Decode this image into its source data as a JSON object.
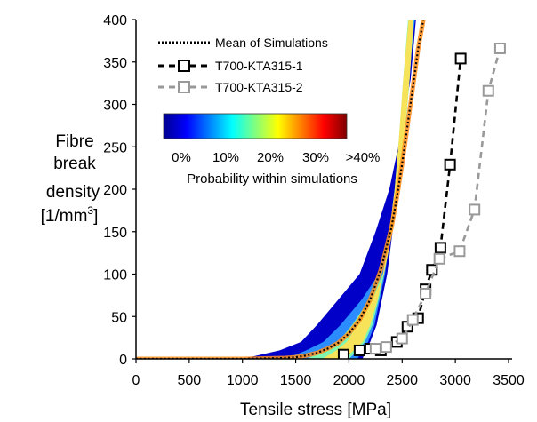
{
  "chart_data": {
    "type": "line",
    "xlabel": "Tensile stress [MPa]",
    "ylabel_lines": [
      "Fibre",
      "break",
      "density",
      "[1/mm",
      "3",
      "]"
    ],
    "xlim": [
      0,
      3500
    ],
    "ylim": [
      0,
      400
    ],
    "xticks": [
      0,
      500,
      1000,
      1500,
      2000,
      2500,
      3000,
      3500
    ],
    "yticks": [
      0,
      50,
      100,
      150,
      200,
      250,
      300,
      350,
      400
    ],
    "grid": false,
    "legend_position": "top-right",
    "series": [
      {
        "name": "Mean of Simulations",
        "style": "dotted",
        "color": "#000000",
        "x": [
          0,
          1000,
          1200,
          1400,
          1500,
          1600,
          1700,
          1800,
          1900,
          2000,
          2100,
          2200,
          2300,
          2400,
          2450,
          2500,
          2550,
          2600,
          2650,
          2700
        ],
        "y": [
          0,
          0,
          0.5,
          1,
          2,
          4,
          7,
          12,
          19,
          30,
          46,
          70,
          105,
          155,
          190,
          230,
          275,
          320,
          365,
          400
        ]
      },
      {
        "name": "T700-KTA315-1",
        "style": "dashed",
        "color": "#000000",
        "marker": "square",
        "x": [
          1950,
          2100,
          2200,
          2300,
          2450,
          2550,
          2650,
          2720,
          2780,
          2860,
          2950,
          3050
        ],
        "y": [
          5,
          10,
          12,
          10,
          20,
          38,
          48,
          82,
          105,
          131,
          229,
          354
        ]
      },
      {
        "name": "T700-KTA315-2",
        "style": "dashed",
        "color": "#999999",
        "marker": "square",
        "x": [
          2250,
          2350,
          2500,
          2600,
          2720,
          2850,
          3040,
          3180,
          3310,
          3420
        ],
        "y": [
          12,
          14,
          24,
          46,
          77,
          118,
          127,
          176,
          316,
          366
        ]
      }
    ],
    "probability_band": {
      "colorbar_ticks": [
        "0%",
        "10%",
        "20%",
        "30%",
        ">40%"
      ],
      "colorbar_label": "Probability within simulations",
      "colormap": [
        "#00008f",
        "#0000ff",
        "#0080ff",
        "#00ffff",
        "#80ff80",
        "#ffff00",
        "#ff8000",
        "#ff0000",
        "#800000"
      ],
      "bands": [
        {
          "prob": 0.03,
          "color": "#0000c8",
          "x_lo": [
            2130,
            2150,
            2200,
            2260,
            2310,
            2360,
            2410,
            2450,
            2490,
            2530,
            2580
          ],
          "x_hi": [
            1000,
            1350,
            1550,
            1700,
            1900,
            2100,
            2250,
            2380,
            2480,
            2580,
            2630
          ],
          "y": [
            0,
            10,
            20,
            40,
            70,
            100,
            150,
            200,
            260,
            330,
            400
          ]
        },
        {
          "prob": 0.1,
          "color": "#2a8cff",
          "x_lo": [
            2080,
            2120,
            2180,
            2240,
            2290,
            2340,
            2390,
            2440,
            2480,
            2520,
            2560
          ],
          "x_hi": [
            1400,
            1600,
            1760,
            1920,
            2120,
            2280,
            2380,
            2450,
            2510,
            2560,
            2620
          ],
          "y": [
            0,
            10,
            20,
            40,
            70,
            100,
            150,
            200,
            260,
            330,
            400
          ]
        },
        {
          "prob": 0.2,
          "color": "#7ff7b0",
          "x_lo": [
            2000,
            2080,
            2150,
            2220,
            2280,
            2330,
            2380,
            2430,
            2470,
            2510,
            2555
          ],
          "x_hi": [
            1600,
            1780,
            1900,
            2030,
            2190,
            2320,
            2410,
            2470,
            2525,
            2570,
            2610
          ],
          "y": [
            0,
            10,
            20,
            40,
            70,
            100,
            150,
            200,
            260,
            330,
            400
          ]
        },
        {
          "prob": 0.3,
          "color": "#f6e35a",
          "x_lo": [
            1950,
            2050,
            2130,
            2200,
            2270,
            2320,
            2380,
            2430,
            2470,
            2510,
            2560
          ],
          "x_hi": [
            1750,
            1880,
            1980,
            2080,
            2220,
            2330,
            2410,
            2470,
            2520,
            2570,
            2605
          ],
          "y": [
            0,
            10,
            20,
            40,
            70,
            100,
            150,
            200,
            260,
            330,
            400
          ]
        }
      ]
    }
  }
}
